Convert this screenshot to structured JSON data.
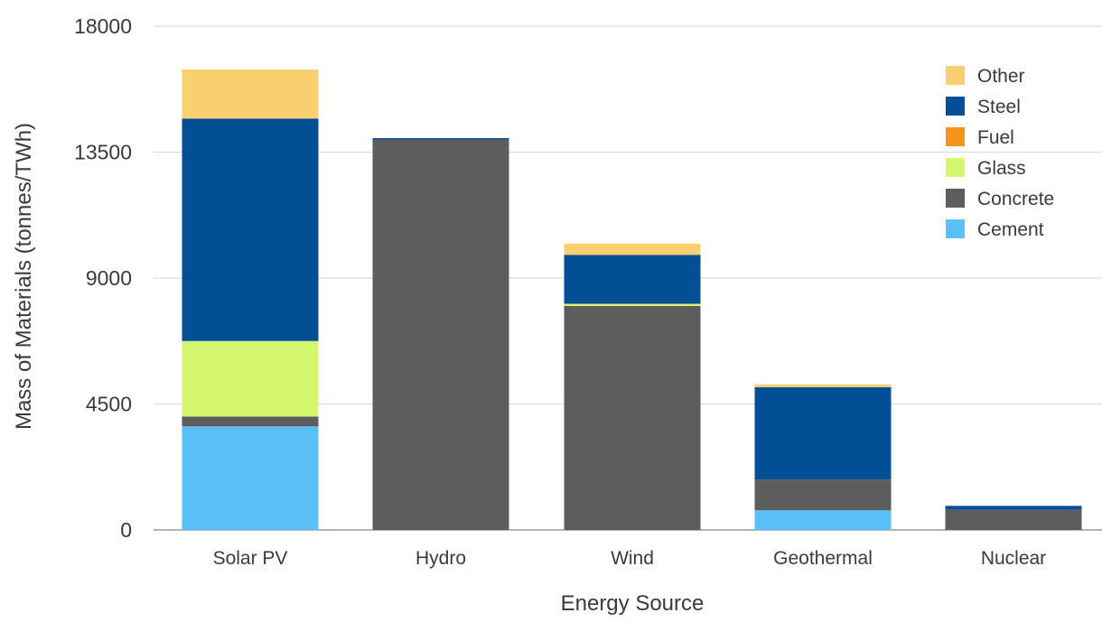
{
  "chart_data": {
    "type": "bar",
    "stacked": true,
    "title": "",
    "xlabel": "Energy Source",
    "ylabel": "Mass of Materials (tonnes/TWh)",
    "ylim": [
      0,
      18000
    ],
    "yticks": [
      0,
      4500,
      9000,
      13500,
      18000
    ],
    "ytick_labels": [
      "0",
      "4500",
      "9000",
      "13500",
      "18000"
    ],
    "grid": true,
    "legend_position": "top-right",
    "legend_order": [
      "Other",
      "Steel",
      "Fuel",
      "Glass",
      "Concrete",
      "Cement"
    ],
    "categories": [
      "Solar PV",
      "Hydro",
      "Wind",
      "Geothermal",
      "Nuclear"
    ],
    "series": [
      {
        "name": "Cement",
        "color": "#5bc0f8",
        "values": [
          3700,
          0,
          0,
          700,
          0
        ]
      },
      {
        "name": "Concrete",
        "color": "#5d5d5d",
        "values": [
          350,
          13950,
          8000,
          1100,
          720
        ]
      },
      {
        "name": "Glass",
        "color": "#d4f56e",
        "values": [
          2700,
          0,
          80,
          0,
          0
        ]
      },
      {
        "name": "Fuel",
        "color": "#f5951d",
        "values": [
          0,
          0,
          0,
          0,
          0
        ]
      },
      {
        "name": "Steel",
        "color": "#034f96",
        "values": [
          7950,
          50,
          1750,
          3300,
          140
        ]
      },
      {
        "name": "Other",
        "color": "#f8d070",
        "values": [
          1750,
          0,
          400,
          100,
          0
        ]
      }
    ]
  }
}
